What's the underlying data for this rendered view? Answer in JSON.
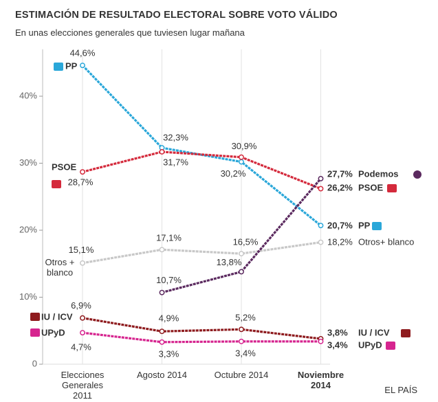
{
  "chart_data": {
    "type": "line",
    "title": "ESTIMACIÓN DE RESULTADO ELECTORAL SOBRE VOTO VÁLIDO",
    "subtitle": "En unas elecciones generales que tuviesen lugar mañana",
    "source": "EL PAÍS",
    "categories": [
      "Elecciones Generales 2011",
      "Agosto 2014",
      "Octubre 2014",
      "Noviembre 2014"
    ],
    "ylim": [
      0,
      47
    ],
    "yticks": [
      0,
      {
        "value": 10,
        "label": "10%"
      },
      {
        "value": 20,
        "label": "20%"
      },
      {
        "value": 30,
        "label": "30%"
      },
      {
        "value": 40,
        "label": "40%"
      }
    ],
    "series": [
      {
        "name": "PP",
        "end_label": "PP",
        "color": "#2aa7d9",
        "values": [
          44.6,
          32.3,
          30.2,
          20.7
        ],
        "value_labels": [
          "44,6%",
          "32,3%",
          "30,2%",
          "20,7%"
        ]
      },
      {
        "name": "PSOE",
        "end_label": "PSOE",
        "color": "#d42a3c",
        "values": [
          28.7,
          31.7,
          30.9,
          26.2
        ],
        "value_labels": [
          "28,7%",
          "31,7%",
          "30,9%",
          "26,2%"
        ]
      },
      {
        "name": "Otros + blanco",
        "end_label": "Otros+ blanco",
        "color": "#c8c8c8",
        "values": [
          15.1,
          17.1,
          16.5,
          18.2
        ],
        "value_labels": [
          "15,1%",
          "17,1%",
          "16,5%",
          "18,2%"
        ]
      },
      {
        "name": "Podemos",
        "end_label": "Podemos",
        "color": "#5b2a5f",
        "values": [
          null,
          10.7,
          13.8,
          27.7
        ],
        "value_labels": [
          null,
          "10,7%",
          "13,8%",
          "27,7%"
        ]
      },
      {
        "name": "IU / ICV",
        "end_label": "IU / ICV",
        "color": "#8e1b1e",
        "values": [
          6.9,
          4.9,
          5.2,
          3.8
        ],
        "value_labels": [
          "6,9%",
          "4,9%",
          "5,2%",
          "3,8%"
        ]
      },
      {
        "name": "UPyD",
        "end_label": "UPyD",
        "color": "#d6258f",
        "values": [
          4.7,
          3.3,
          3.4,
          3.4
        ],
        "value_labels": [
          "4,7%",
          "3,3%",
          "3,4%",
          "3,4%"
        ]
      }
    ]
  }
}
